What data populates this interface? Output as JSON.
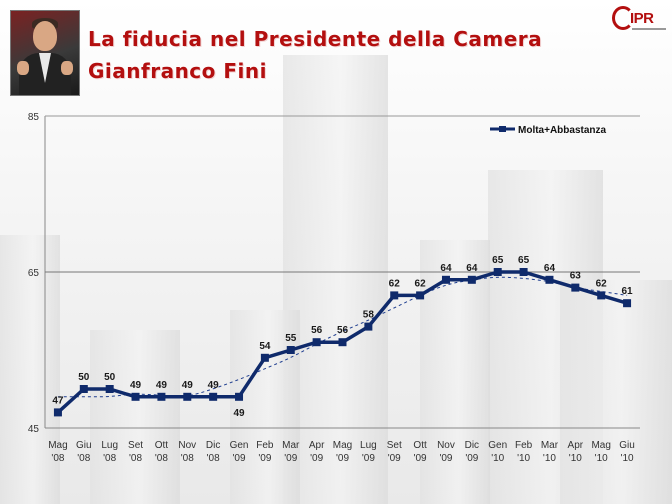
{
  "header": {
    "title_line1": "La fiducia nel Presidente della Camera",
    "title_line2": "Gianfranco Fini",
    "logo_text": "IPR",
    "photo_icon": "portrait-photo",
    "logo_icon": "ipr-logo"
  },
  "colors": {
    "title": "#b30f0f",
    "series": "#0f2a6b",
    "last_label": "#c0141b",
    "trend": "#1e3d8f"
  },
  "chart_data": {
    "type": "line",
    "ylim": [
      45,
      85
    ],
    "yticks": [
      45,
      65,
      85
    ],
    "grid": "horizontal",
    "legend_position": "top-right",
    "categories": [
      [
        "Mag",
        "'08"
      ],
      [
        "Giu",
        "'08"
      ],
      [
        "Lug",
        "'08"
      ],
      [
        "Set",
        "'08"
      ],
      [
        "Ott",
        "'08"
      ],
      [
        "Nov",
        "'08"
      ],
      [
        "Dic",
        "'08"
      ],
      [
        "Gen",
        "'09"
      ],
      [
        "Feb",
        "'09"
      ],
      [
        "Mar",
        "'09"
      ],
      [
        "Apr",
        "'09"
      ],
      [
        "Mag",
        "'09"
      ],
      [
        "Lug",
        "'09"
      ],
      [
        "Set",
        "'09"
      ],
      [
        "Ott",
        "'09"
      ],
      [
        "Nov",
        "'09"
      ],
      [
        "Dic",
        "'09"
      ],
      [
        "Gen",
        "'10"
      ],
      [
        "Feb",
        "'10"
      ],
      [
        "Mar",
        "'10"
      ],
      [
        "Apr",
        "'10"
      ],
      [
        "Mag",
        "'10"
      ],
      [
        "Giu",
        "'10"
      ]
    ],
    "series": [
      {
        "name": "Molta+Abbastanza",
        "values": [
          47,
          50,
          50,
          49,
          49,
          49,
          49,
          49,
          54,
          55,
          56,
          56,
          58,
          62,
          62,
          64,
          64,
          65,
          65,
          64,
          63,
          62,
          61
        ],
        "labels": [
          "47",
          "50",
          "50",
          "49",
          "49",
          "49",
          "49",
          "49",
          "54",
          "55",
          "56",
          "56",
          "58",
          "62",
          "62",
          "64",
          "64",
          "65",
          "65",
          "64",
          "63",
          "62",
          "61"
        ]
      }
    ],
    "trendline": "polynomial, dashed"
  }
}
